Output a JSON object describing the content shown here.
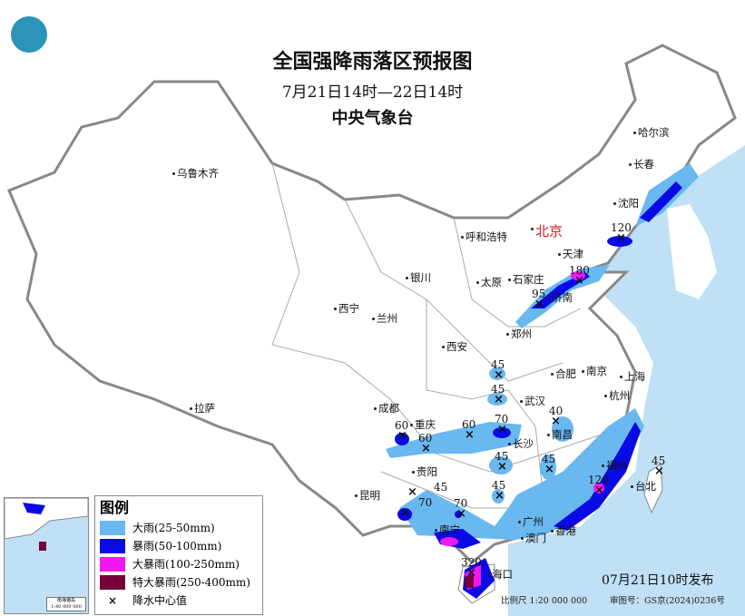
{
  "header": {
    "title": "全国强降雨落区预报图",
    "period": "7月21日14时—22日14时",
    "issuer": "中央气象台"
  },
  "capital": "北京",
  "cities": [
    {
      "name": "乌鲁木齐"
    },
    {
      "name": "哈尔滨"
    },
    {
      "name": "长春"
    },
    {
      "name": "沈阳"
    },
    {
      "name": "呼和浩特"
    },
    {
      "name": "天津"
    },
    {
      "name": "石家庄"
    },
    {
      "name": "太原"
    },
    {
      "name": "济南"
    },
    {
      "name": "银川"
    },
    {
      "name": "西宁"
    },
    {
      "name": "兰州"
    },
    {
      "name": "郑州"
    },
    {
      "name": "西安"
    },
    {
      "name": "合肥"
    },
    {
      "name": "南京"
    },
    {
      "name": "上海"
    },
    {
      "name": "杭州"
    },
    {
      "name": "武汉"
    },
    {
      "name": "南昌"
    },
    {
      "name": "长沙"
    },
    {
      "name": "成都"
    },
    {
      "name": "重庆"
    },
    {
      "name": "拉萨"
    },
    {
      "name": "贵阳"
    },
    {
      "name": "昆明"
    },
    {
      "name": "南宁"
    },
    {
      "name": "广州"
    },
    {
      "name": "澳门"
    },
    {
      "name": "香港"
    },
    {
      "name": "福州"
    },
    {
      "name": "台北"
    },
    {
      "name": "海口"
    }
  ],
  "rain_centers": [
    {
      "value": "120"
    },
    {
      "value": "180"
    },
    {
      "value": "95"
    },
    {
      "value": "45"
    },
    {
      "value": "45"
    },
    {
      "value": "60"
    },
    {
      "value": "60"
    },
    {
      "value": "60"
    },
    {
      "value": "70"
    },
    {
      "value": "40"
    },
    {
      "value": "45"
    },
    {
      "value": "45"
    },
    {
      "value": "45"
    },
    {
      "value": "45"
    },
    {
      "value": "70"
    },
    {
      "value": "70"
    },
    {
      "value": "120"
    },
    {
      "value": "45"
    },
    {
      "value": "320"
    }
  ],
  "legend": {
    "title": "图例",
    "items": [
      {
        "label": "大雨(25-50mm)",
        "color": "#6ab8f0"
      },
      {
        "label": "暴雨(50-100mm)",
        "color": "#0a0ae6"
      },
      {
        "label": "大暴雨(100-250mm)",
        "color": "#f018f0"
      },
      {
        "label": "特大暴雨(250-400mm)",
        "color": "#780038"
      },
      {
        "label": "降水中心值",
        "symbol": "×"
      }
    ]
  },
  "inset": {
    "caption": "南海诸岛",
    "scale": "1:40 000 000"
  },
  "footer": {
    "publish_time": "07月21日10时发布",
    "scale": "比例尺 1:20 000 000",
    "approval": "审图号：GS京(2024)0236号"
  },
  "colors": {
    "sea": "#bfe0f5",
    "land": "#ffffff",
    "border": "#999999"
  }
}
